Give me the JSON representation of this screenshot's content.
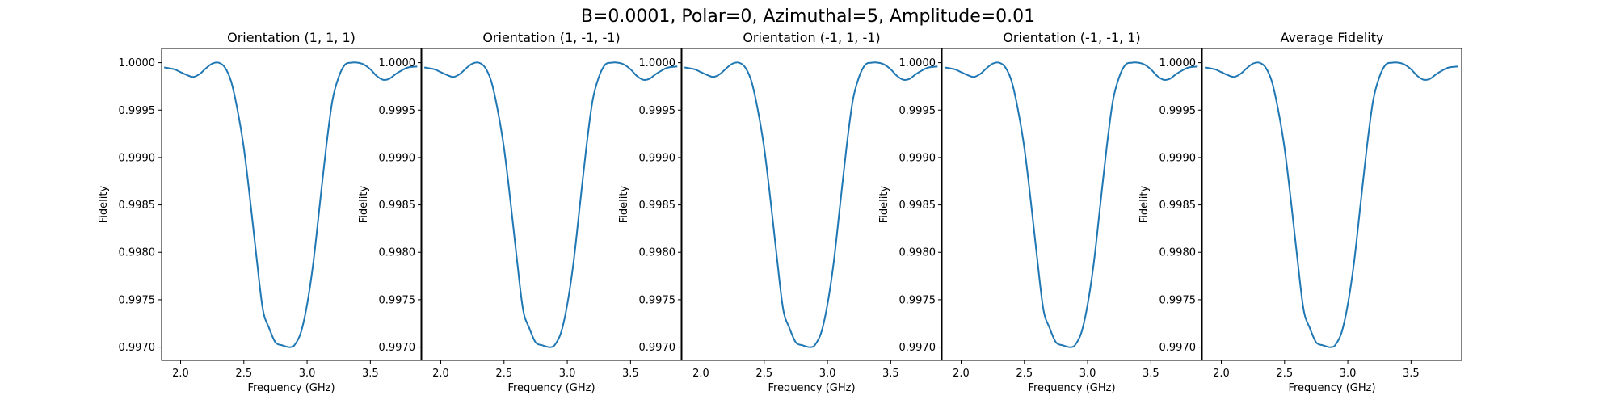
{
  "figure": {
    "title": "B=0.0001, Polar=0, Azimuthal=5, Amplitude=0.01"
  },
  "chart_data": [
    {
      "type": "line",
      "title": "Orientation (1, 1, 1)",
      "xlabel": "Frequency (GHz)",
      "ylabel": "Fidelity",
      "xlim": [
        1.85,
        3.9
      ],
      "ylim": [
        0.99686,
        1.00015
      ],
      "xticks": [
        "2.0",
        "2.5",
        "3.0",
        "3.5"
      ],
      "yticks": [
        "0.9970",
        "0.9975",
        "0.9980",
        "0.9985",
        "0.9990",
        "0.9995",
        "1.0000"
      ],
      "grid": false,
      "series": [
        {
          "color": "#1f77b4",
          "x": [
            1.87,
            1.95,
            2.0,
            2.05,
            2.1,
            2.15,
            2.2,
            2.25,
            2.3,
            2.35,
            2.4,
            2.45,
            2.5,
            2.55,
            2.6,
            2.65,
            2.7,
            2.75,
            2.8,
            2.85,
            2.87,
            2.9,
            2.95,
            3.0,
            3.05,
            3.1,
            3.15,
            3.2,
            3.25,
            3.3,
            3.35,
            3.4,
            3.45,
            3.5,
            3.55,
            3.6,
            3.65,
            3.7,
            3.75,
            3.8,
            3.87
          ],
          "y": [
            0.99995,
            0.99993,
            0.9999,
            0.99987,
            0.99985,
            0.99988,
            0.99994,
            0.99999,
            1.0,
            0.99995,
            0.9998,
            0.9995,
            0.9991,
            0.99855,
            0.99795,
            0.9974,
            0.9972,
            0.99705,
            0.99702,
            0.997,
            0.997,
            0.99702,
            0.99715,
            0.99745,
            0.9979,
            0.9985,
            0.9991,
            0.9996,
            0.99985,
            0.99998,
            1.0,
            1.0,
            0.99998,
            0.99993,
            0.99986,
            0.99982,
            0.99983,
            0.99988,
            0.99992,
            0.99995,
            0.99996
          ]
        }
      ]
    },
    {
      "type": "line",
      "title": "Orientation (1, -1, -1)",
      "xlabel": "Frequency (GHz)",
      "ylabel": "Fidelity",
      "xlim": [
        1.85,
        3.9
      ],
      "ylim": [
        0.99686,
        1.00015
      ],
      "xticks": [
        "2.0",
        "2.5",
        "3.0",
        "3.5"
      ],
      "yticks": [
        "0.9970",
        "0.9975",
        "0.9980",
        "0.9985",
        "0.9990",
        "0.9995",
        "1.0000"
      ],
      "grid": false,
      "series": [
        {
          "color": "#1f77b4",
          "x": [
            1.87,
            1.95,
            2.0,
            2.05,
            2.1,
            2.15,
            2.2,
            2.25,
            2.3,
            2.35,
            2.4,
            2.45,
            2.5,
            2.55,
            2.6,
            2.65,
            2.7,
            2.75,
            2.8,
            2.85,
            2.87,
            2.9,
            2.95,
            3.0,
            3.05,
            3.1,
            3.15,
            3.2,
            3.25,
            3.3,
            3.35,
            3.4,
            3.45,
            3.5,
            3.55,
            3.6,
            3.65,
            3.7,
            3.75,
            3.8,
            3.87
          ],
          "y": [
            0.99995,
            0.99993,
            0.9999,
            0.99987,
            0.99985,
            0.99988,
            0.99994,
            0.99999,
            1.0,
            0.99995,
            0.9998,
            0.9995,
            0.9991,
            0.99855,
            0.99795,
            0.9974,
            0.9972,
            0.99705,
            0.99702,
            0.997,
            0.997,
            0.99702,
            0.99715,
            0.99745,
            0.9979,
            0.9985,
            0.9991,
            0.9996,
            0.99985,
            0.99998,
            1.0,
            1.0,
            0.99998,
            0.99993,
            0.99986,
            0.99982,
            0.99983,
            0.99988,
            0.99992,
            0.99995,
            0.99996
          ]
        }
      ]
    },
    {
      "type": "line",
      "title": "Orientation (-1, 1, -1)",
      "xlabel": "Frequency (GHz)",
      "ylabel": "Fidelity",
      "xlim": [
        1.85,
        3.9
      ],
      "ylim": [
        0.99686,
        1.00015
      ],
      "xticks": [
        "2.0",
        "2.5",
        "3.0",
        "3.5"
      ],
      "yticks": [
        "0.9970",
        "0.9975",
        "0.9980",
        "0.9985",
        "0.9990",
        "0.9995",
        "1.0000"
      ],
      "grid": false,
      "series": [
        {
          "color": "#1f77b4",
          "x": [
            1.87,
            1.95,
            2.0,
            2.05,
            2.1,
            2.15,
            2.2,
            2.25,
            2.3,
            2.35,
            2.4,
            2.45,
            2.5,
            2.55,
            2.6,
            2.65,
            2.7,
            2.75,
            2.8,
            2.85,
            2.87,
            2.9,
            2.95,
            3.0,
            3.05,
            3.1,
            3.15,
            3.2,
            3.25,
            3.3,
            3.35,
            3.4,
            3.45,
            3.5,
            3.55,
            3.6,
            3.65,
            3.7,
            3.75,
            3.8,
            3.87
          ],
          "y": [
            0.99995,
            0.99993,
            0.9999,
            0.99987,
            0.99985,
            0.99988,
            0.99994,
            0.99999,
            1.0,
            0.99995,
            0.9998,
            0.9995,
            0.9991,
            0.99855,
            0.99795,
            0.9974,
            0.9972,
            0.99705,
            0.99702,
            0.997,
            0.997,
            0.99702,
            0.99715,
            0.99745,
            0.9979,
            0.9985,
            0.9991,
            0.9996,
            0.99985,
            0.99998,
            1.0,
            1.0,
            0.99998,
            0.99993,
            0.99986,
            0.99982,
            0.99983,
            0.99988,
            0.99992,
            0.99995,
            0.99996
          ]
        }
      ]
    },
    {
      "type": "line",
      "title": "Orientation (-1, -1, 1)",
      "xlabel": "Frequency (GHz)",
      "ylabel": "Fidelity",
      "xlim": [
        1.85,
        3.9
      ],
      "ylim": [
        0.99686,
        1.00015
      ],
      "xticks": [
        "2.0",
        "2.5",
        "3.0",
        "3.5"
      ],
      "yticks": [
        "0.9970",
        "0.9975",
        "0.9980",
        "0.9985",
        "0.9990",
        "0.9995",
        "1.0000"
      ],
      "grid": false,
      "series": [
        {
          "color": "#1f77b4",
          "x": [
            1.87,
            1.95,
            2.0,
            2.05,
            2.1,
            2.15,
            2.2,
            2.25,
            2.3,
            2.35,
            2.4,
            2.45,
            2.5,
            2.55,
            2.6,
            2.65,
            2.7,
            2.75,
            2.8,
            2.85,
            2.87,
            2.9,
            2.95,
            3.0,
            3.05,
            3.1,
            3.15,
            3.2,
            3.25,
            3.3,
            3.35,
            3.4,
            3.45,
            3.5,
            3.55,
            3.6,
            3.65,
            3.7,
            3.75,
            3.8,
            3.87
          ],
          "y": [
            0.99995,
            0.99993,
            0.9999,
            0.99987,
            0.99985,
            0.99988,
            0.99994,
            0.99999,
            1.0,
            0.99995,
            0.9998,
            0.9995,
            0.9991,
            0.99855,
            0.99795,
            0.9974,
            0.9972,
            0.99705,
            0.99702,
            0.997,
            0.997,
            0.99702,
            0.99715,
            0.99745,
            0.9979,
            0.9985,
            0.9991,
            0.9996,
            0.99985,
            0.99998,
            1.0,
            1.0,
            0.99998,
            0.99993,
            0.99986,
            0.99982,
            0.99983,
            0.99988,
            0.99992,
            0.99995,
            0.99996
          ]
        }
      ]
    },
    {
      "type": "line",
      "title": "Average Fidelity",
      "xlabel": "Frequency (GHz)",
      "ylabel": "Fidelity",
      "xlim": [
        1.85,
        3.9
      ],
      "ylim": [
        0.99686,
        1.00015
      ],
      "xticks": [
        "2.0",
        "2.5",
        "3.0",
        "3.5"
      ],
      "yticks": [
        "0.9970",
        "0.9975",
        "0.9980",
        "0.9985",
        "0.9990",
        "0.9995",
        "1.0000"
      ],
      "grid": false,
      "series": [
        {
          "color": "#1f77b4",
          "x": [
            1.87,
            1.95,
            2.0,
            2.05,
            2.1,
            2.15,
            2.2,
            2.25,
            2.3,
            2.35,
            2.4,
            2.45,
            2.5,
            2.55,
            2.6,
            2.65,
            2.7,
            2.75,
            2.8,
            2.85,
            2.87,
            2.9,
            2.95,
            3.0,
            3.05,
            3.1,
            3.15,
            3.2,
            3.25,
            3.3,
            3.35,
            3.4,
            3.45,
            3.5,
            3.55,
            3.6,
            3.65,
            3.7,
            3.75,
            3.8,
            3.87
          ],
          "y": [
            0.99995,
            0.99993,
            0.9999,
            0.99987,
            0.99985,
            0.99988,
            0.99994,
            0.99999,
            1.0,
            0.99995,
            0.9998,
            0.9995,
            0.9991,
            0.99855,
            0.99795,
            0.9974,
            0.9972,
            0.99705,
            0.99702,
            0.997,
            0.997,
            0.99702,
            0.99715,
            0.99745,
            0.9979,
            0.9985,
            0.9991,
            0.9996,
            0.99985,
            0.99998,
            1.0,
            1.0,
            0.99998,
            0.99993,
            0.99986,
            0.99982,
            0.99983,
            0.99988,
            0.99992,
            0.99995,
            0.99996
          ]
        }
      ]
    }
  ]
}
